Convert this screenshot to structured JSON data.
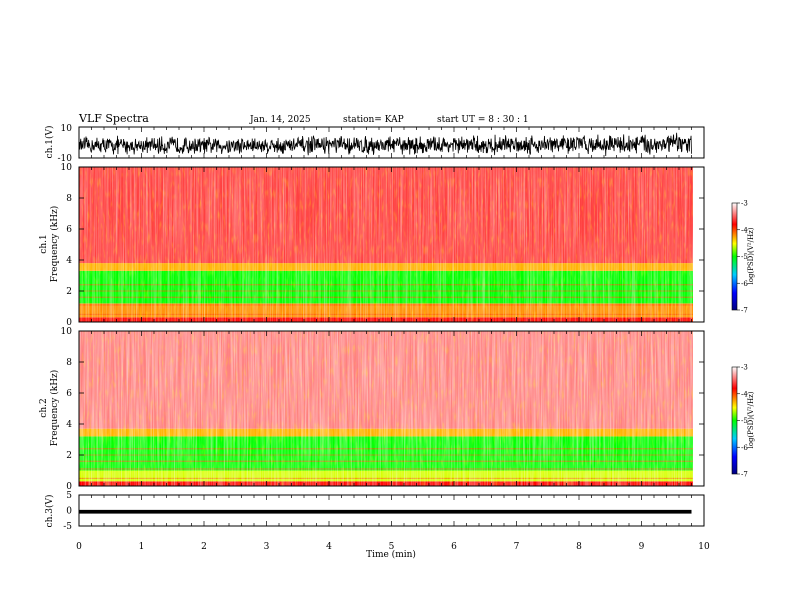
{
  "header": {
    "title": "VLF Spectra",
    "date": "Jan. 14, 2025",
    "station": "station= KAP",
    "start_ut": "start  UT =  8 : 30 : 1"
  },
  "chart_data": [
    {
      "type": "line",
      "panel": "ch1-waveform",
      "ylabel": "ch.1(V)",
      "ylim": [
        -10,
        10
      ],
      "y_ticks": [
        "10",
        "-10"
      ],
      "x": [
        0,
        0.5,
        1,
        1.5,
        2,
        2.5,
        3,
        3.5,
        4,
        4.5,
        5,
        5.5,
        6,
        6.5,
        7,
        7.5,
        8,
        8.5,
        9,
        9.5,
        9.8
      ],
      "y_range_min": [
        -7,
        -8,
        -7,
        -8,
        -7,
        -8,
        -7,
        -8,
        -7,
        -8,
        -7,
        -8,
        -7,
        -8,
        -7,
        -8,
        -7,
        -8,
        -8,
        -8,
        -8
      ],
      "y_range_max": [
        5,
        6,
        5,
        6,
        5,
        6,
        5,
        6,
        6,
        6,
        6,
        6,
        6,
        6,
        7,
        7,
        7,
        7,
        8,
        8,
        8
      ],
      "color": "#000000"
    },
    {
      "type": "heatmap",
      "panel": "ch1-spectrogram",
      "ylabel": "ch.1\nFrequency (kHz)",
      "ylim": [
        0,
        10
      ],
      "y_ticks": [
        "0",
        "2",
        "4",
        "6",
        "8",
        "10"
      ],
      "xlim": [
        0,
        9.85
      ],
      "bands_khz": [
        {
          "from": 0,
          "to": 0.3,
          "level": -3.8
        },
        {
          "from": 0.3,
          "to": 1.2,
          "level": -4.2
        },
        {
          "from": 1.2,
          "to": 3.3,
          "level": -5.0
        },
        {
          "from": 3.3,
          "to": 3.8,
          "level": -4.3
        },
        {
          "from": 3.8,
          "to": 10,
          "level": -3.6
        }
      ],
      "colorbar": {
        "label": "log(PSD)(V²/Hz)",
        "range": [
          -7,
          -3
        ],
        "ticks": [
          "-3",
          "-4",
          "-5",
          "-6",
          "-7"
        ],
        "colors": [
          "#000080",
          "#0000ff",
          "#00ccff",
          "#00ff00",
          "#ffff00",
          "#ff0000",
          "#ffffff"
        ]
      }
    },
    {
      "type": "heatmap",
      "panel": "ch2-spectrogram",
      "ylabel": "ch.2\nFrequency (kHz)",
      "ylim": [
        0,
        10
      ],
      "y_ticks": [
        "0",
        "2",
        "4",
        "6",
        "8",
        "10"
      ],
      "xlim": [
        0,
        9.85
      ],
      "bands_khz": [
        {
          "from": 0,
          "to": 0.3,
          "level": -3.8
        },
        {
          "from": 0.3,
          "to": 1.0,
          "level": -4.6
        },
        {
          "from": 1.0,
          "to": 3.2,
          "level": -5.0
        },
        {
          "from": 3.2,
          "to": 3.7,
          "level": -4.3
        },
        {
          "from": 3.7,
          "to": 10,
          "level": -3.4
        }
      ],
      "colorbar": {
        "label": "log(PSD)(V²/Hz)",
        "range": [
          -7,
          -3
        ],
        "ticks": [
          "-3",
          "-4",
          "-5",
          "-6",
          "-7"
        ],
        "colors": [
          "#000080",
          "#0000ff",
          "#00ccff",
          "#00ff00",
          "#ffff00",
          "#ff0000",
          "#ffffff"
        ]
      }
    },
    {
      "type": "line",
      "panel": "ch3-waveform",
      "ylabel": "ch.3(V)",
      "ylim": [
        -5,
        5
      ],
      "y_ticks": [
        "5",
        "0",
        "-5"
      ],
      "x": [
        0,
        9.8
      ],
      "y_range_min": [
        -1,
        -1
      ],
      "y_range_max": [
        0.2,
        0.2
      ],
      "color": "#000000"
    }
  ],
  "x_axis": {
    "label": "Time (min)",
    "range": [
      0,
      10
    ],
    "ticks": [
      "0",
      "1",
      "2",
      "3",
      "4",
      "5",
      "6",
      "7",
      "8",
      "9",
      "10"
    ]
  }
}
